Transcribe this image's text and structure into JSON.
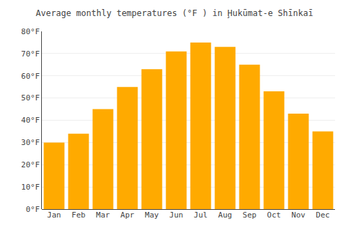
{
  "chart_data": {
    "type": "bar",
    "title": "Average monthly temperatures (°F ) in Ḩukūmat-e Shīnkaī",
    "categories": [
      "Jan",
      "Feb",
      "Mar",
      "Apr",
      "May",
      "Jun",
      "Jul",
      "Aug",
      "Sep",
      "Oct",
      "Nov",
      "Dec"
    ],
    "values": [
      30,
      34,
      45,
      55,
      63,
      71,
      75,
      73,
      65,
      53,
      43,
      35
    ],
    "color": "#FFAA00",
    "ylim": [
      0,
      80
    ],
    "yticks": [
      {
        "value": 0,
        "label": "0°F"
      },
      {
        "value": 10,
        "label": "10°F"
      },
      {
        "value": 20,
        "label": "20°F"
      },
      {
        "value": 30,
        "label": "30°F"
      },
      {
        "value": 40,
        "label": "40°F"
      },
      {
        "value": 50,
        "label": "50°F"
      },
      {
        "value": 60,
        "label": "60°F"
      },
      {
        "value": 70,
        "label": "70°F"
      },
      {
        "value": 80,
        "label": "80°F"
      }
    ],
    "grid": true
  }
}
